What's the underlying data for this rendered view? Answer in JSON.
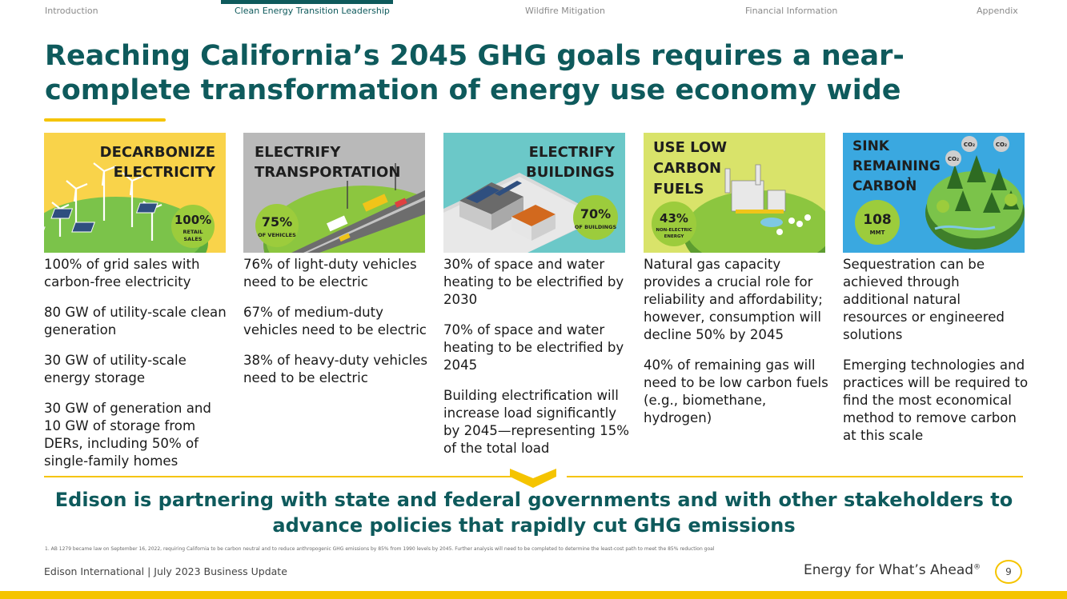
{
  "nav": {
    "items": [
      {
        "label": "Introduction"
      },
      {
        "label": "Clean Energy Transition Leadership"
      },
      {
        "label": "Wildfire Mitigation"
      },
      {
        "label": "Financial Information"
      },
      {
        "label": "Appendix"
      }
    ],
    "active_index": 1
  },
  "title": "Reaching California’s 2045 GHG goals requires a near-complete transformation of energy use economy wide",
  "columns": [
    {
      "heading_lines": [
        "DECARBONIZE",
        "ELECTRICITY"
      ],
      "badge_value": "100%",
      "badge_lines": [
        "RETAIL",
        "SALES"
      ],
      "paragraphs": [
        "100% of grid sales with carbon-free electricity",
        "80 GW of utility-scale clean generation",
        "30 GW of utility-scale energy storage",
        "30 GW of generation and 10 GW of storage from DERs, including 50% of single-family homes"
      ]
    },
    {
      "heading_lines": [
        "ELECTRIFY",
        "TRANSPORTATION"
      ],
      "badge_value": "75%",
      "badge_lines": [
        "OF VEHICLES"
      ],
      "paragraphs": [
        "76% of light-duty vehicles need to be electric",
        "67% of medium-duty vehicles need to be electric",
        "38% of heavy-duty vehicles need to be electric"
      ]
    },
    {
      "heading_lines": [
        "ELECTRIFY",
        "BUILDINGS"
      ],
      "badge_value": "70%",
      "badge_lines": [
        "OF BUILDINGS"
      ],
      "paragraphs": [
        "30% of space and water heating to be electrified by 2030",
        "70% of space and water heating to be electrified by 2045",
        "Building electrification will increase load significantly by 2045—representing 15% of the total load"
      ]
    },
    {
      "heading_lines": [
        "USE LOW",
        "CARBON",
        "FUELS"
      ],
      "badge_value": "43%",
      "badge_lines": [
        "NON-ELECTRIC",
        "ENERGY"
      ],
      "paragraphs": [
        "Natural gas capacity provides a crucial role for reliability and affordability; however, consumption will decline 50% by 2045",
        "40% of remaining gas will need to be low carbon fuels (e.g., biomethane, hydrogen)"
      ]
    },
    {
      "heading_lines": [
        "SINK",
        "REMAINING",
        "CARBON"
      ],
      "heading_footnote": "1",
      "badge_value": "108",
      "badge_lines": [
        "MMT"
      ],
      "co2_label": "CO₂",
      "paragraphs": [
        "Sequestration can be achieved through additional natural resources or engineered solutions",
        "Emerging technologies and practices will be required to find the most economical method to remove carbon at this scale"
      ]
    }
  ],
  "conclusion": "Edison is partnering with state and federal governments and with other stakeholders to advance policies that rapidly cut GHG emissions",
  "footnote": "1.  AB 1279 became law on September 16, 2022, requiring California to be carbon neutral and to reduce anthropogenic GHG emissions by 85% from 1990 levels by 2045. Further analysis will need to be completed to determine the least-cost path to meet the 85% reduction goal",
  "footer": {
    "left": "Edison International |  July 2023 Business Update",
    "tagline": "Energy for What’s Ahead",
    "tagline_mark": "®",
    "page_number": "9"
  },
  "colors": {
    "teal": "#0e5a5c",
    "yellow": "#f5c400",
    "badge_green": "#9ccc3c",
    "panel_yellow": "#f9d34a",
    "panel_gray": "#b9b9b9",
    "panel_teal": "#6bc8c8",
    "panel_lime": "#d9e36a",
    "panel_blue": "#3aa8e0"
  }
}
